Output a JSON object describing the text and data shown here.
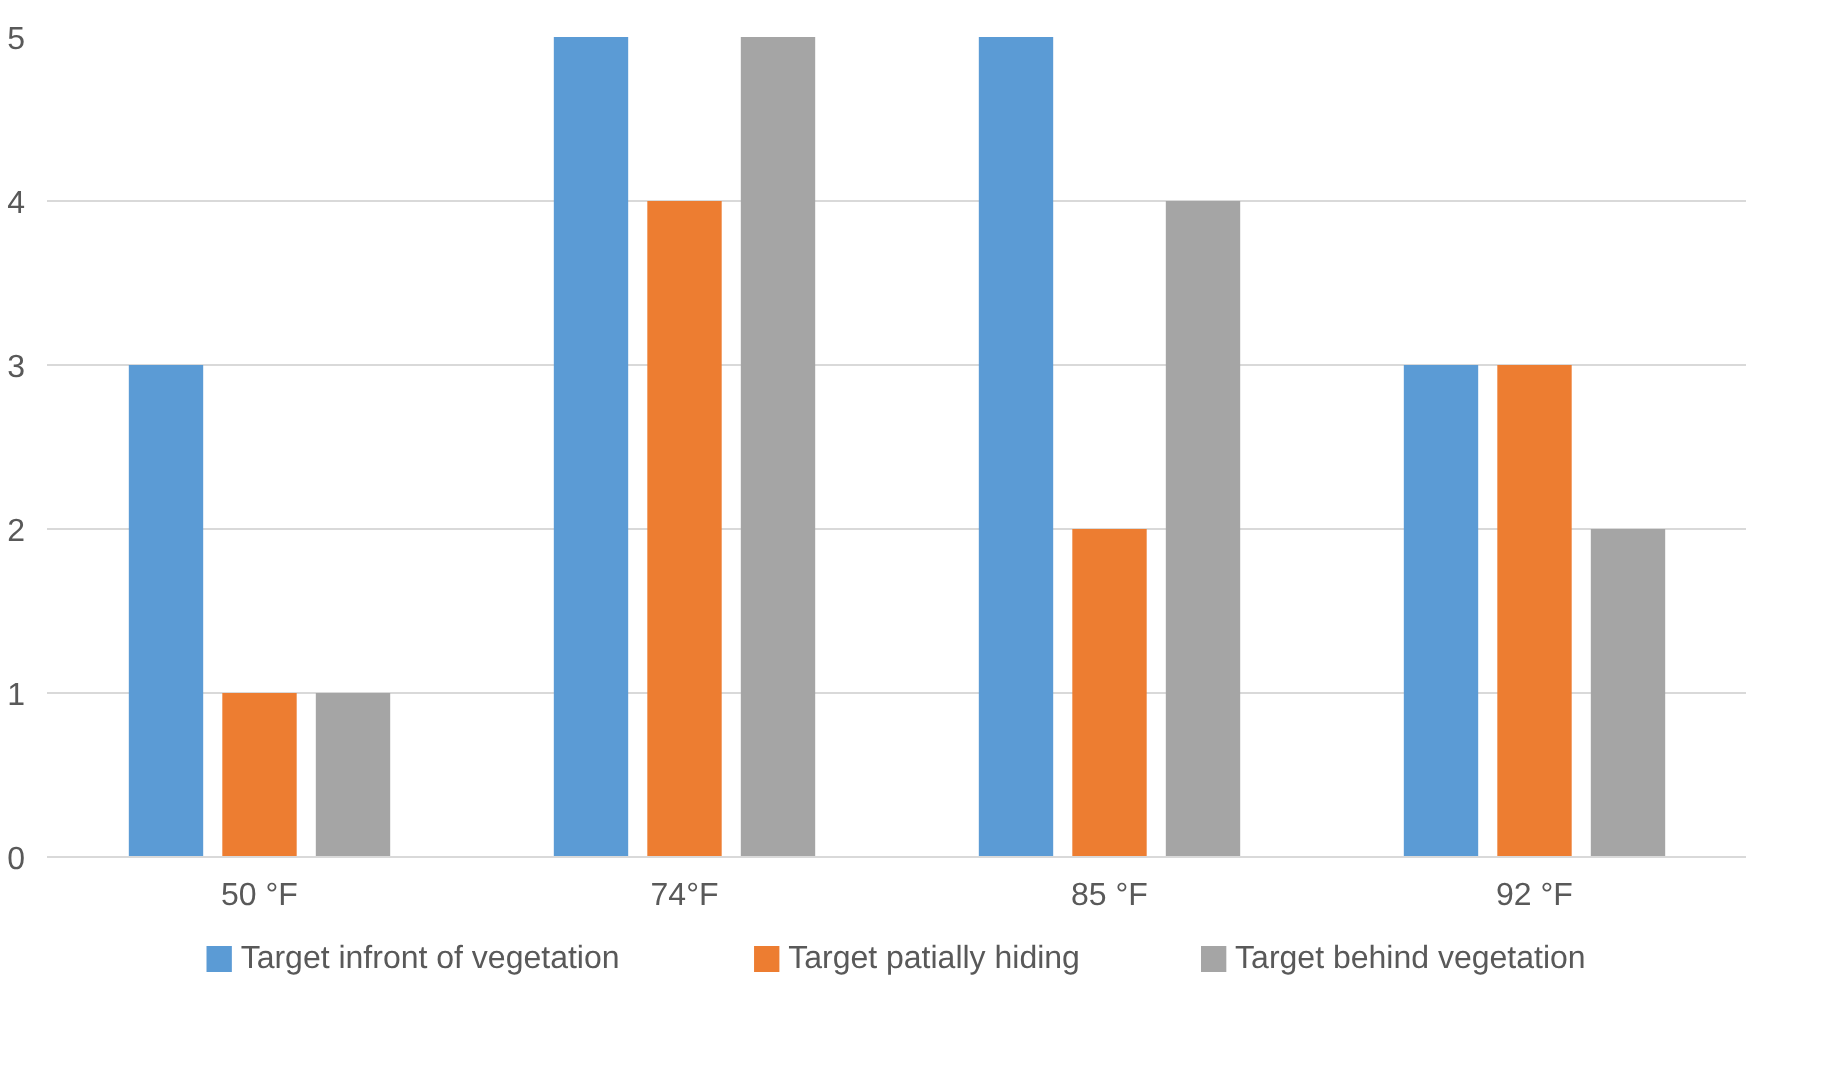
{
  "chart_data": {
    "type": "bar",
    "categories": [
      "50 °F",
      "74°F",
      "85 °F",
      "92 °F"
    ],
    "series": [
      {
        "name": "Target infront of vegetation",
        "color": "#5b9bd5",
        "values": [
          3,
          5,
          5,
          3
        ]
      },
      {
        "name": "Target patially hiding",
        "color": "#ed7d31",
        "values": [
          1,
          4,
          2,
          3
        ]
      },
      {
        "name": "Target behind vegetation",
        "color": "#a5a5a5",
        "values": [
          1,
          5,
          4,
          2
        ]
      }
    ],
    "ylim": [
      0,
      5
    ],
    "yticks": [
      0,
      1,
      2,
      3,
      4,
      5
    ],
    "grid": "y",
    "legend": "bottom"
  }
}
